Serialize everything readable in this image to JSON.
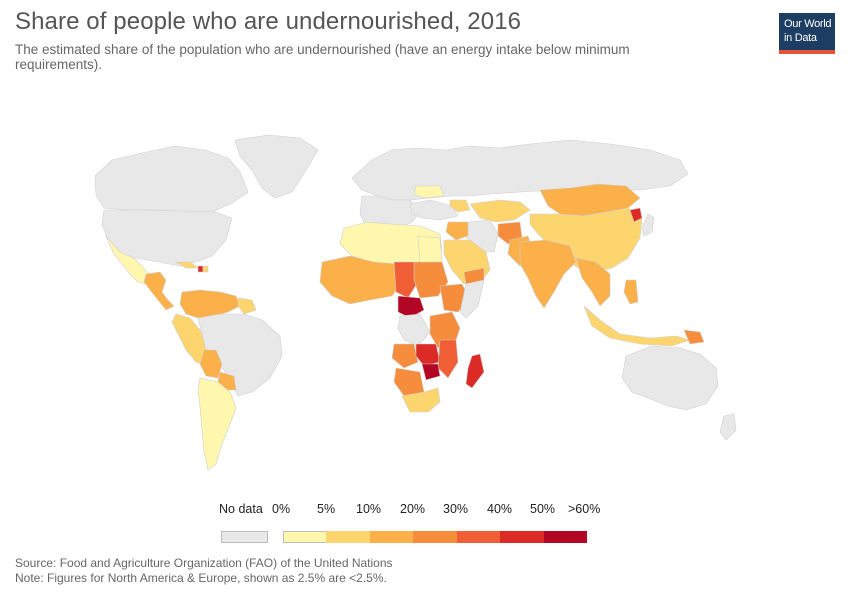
{
  "header": {
    "title": "Share of people who are undernourished, 2016",
    "subtitle": "The estimated share of the population who are undernourished (have an energy intake below minimum requirements)."
  },
  "logo": {
    "line1": "Our World",
    "line2": "in Data"
  },
  "colors": {
    "ocean": "#ffffff",
    "no_data": "#e8e8e8",
    "border": "#cfcfcf",
    "bin_0_5": "#fff7ae",
    "bin_5_10": "#fdd56e",
    "bin_10_20": "#fbb04a",
    "bin_20_30": "#f68d3d",
    "bin_30_40": "#ef5e35",
    "bin_40_50": "#dc2a26",
    "bin_50_60": "#b30624"
  },
  "legend": {
    "no_data_label": "No data",
    "tick_labels": [
      "0%",
      "5%",
      "10%",
      "20%",
      "30%",
      "40%",
      "50%",
      ">60%"
    ]
  },
  "footer": {
    "source": "Source: Food and Agriculture Organization (FAO) of the United Nations",
    "note": "Note: Figures for North America & Europe, shown as 2.5% are <2.5%."
  }
}
